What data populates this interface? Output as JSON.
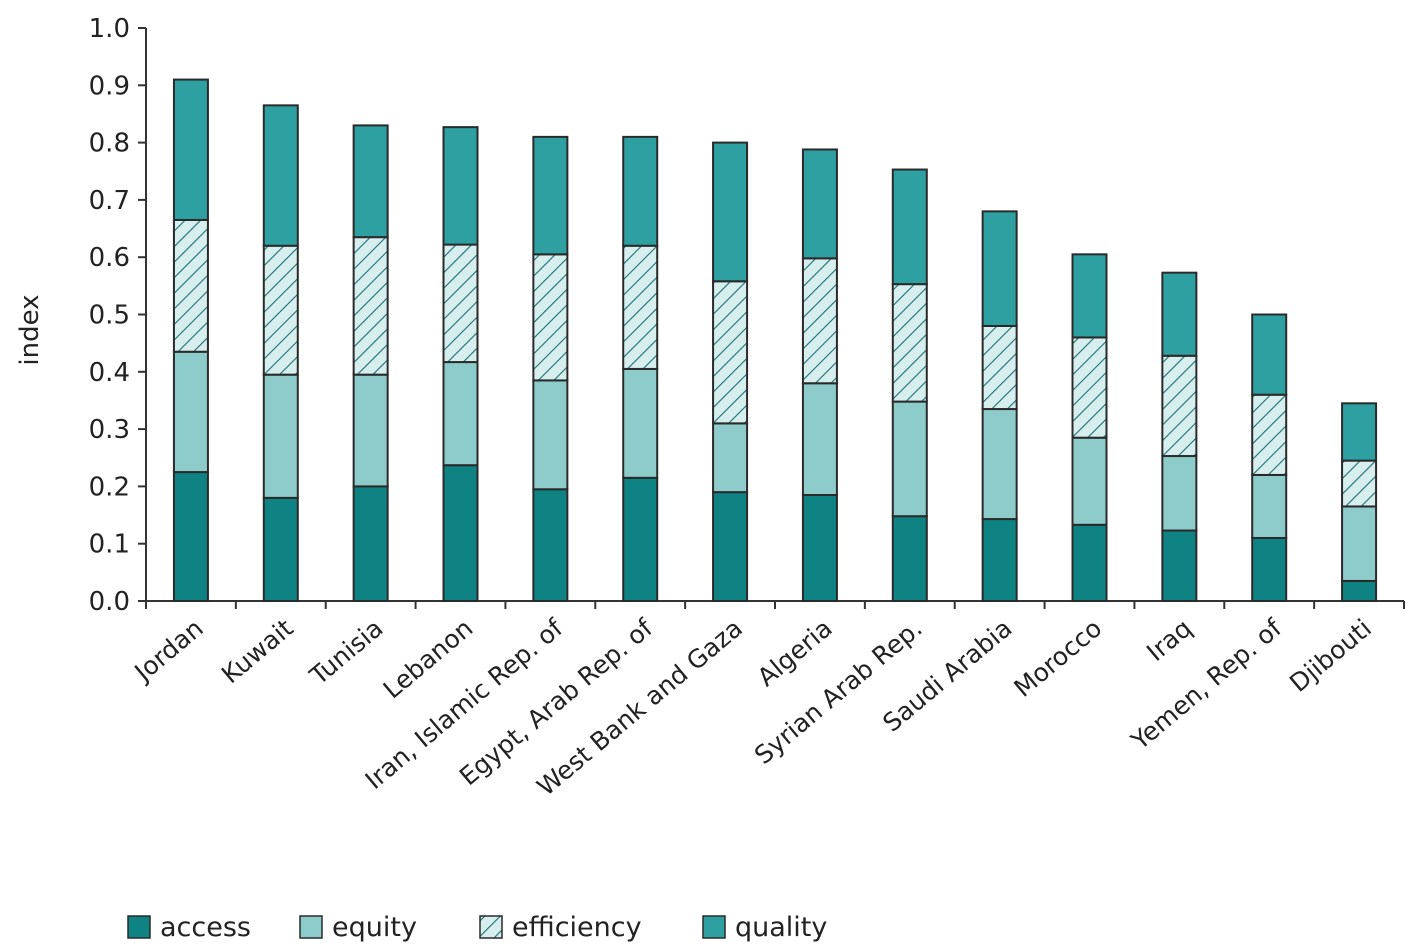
{
  "chart_data": {
    "type": "bar",
    "stacked": true,
    "ylabel": "index",
    "xlabel": "",
    "ylim": [
      0,
      1.0
    ],
    "yticks": [
      "0.0",
      "0.1",
      "0.2",
      "0.3",
      "0.4",
      "0.5",
      "0.6",
      "0.7",
      "0.8",
      "0.9",
      "1.0"
    ],
    "categories": [
      "Jordan",
      "Kuwait",
      "Tunisia",
      "Lebanon",
      "Iran, Islamic Rep. of",
      "Egypt, Arab Rep. of",
      "West Bank and Gaza",
      "Algeria",
      "Syrian Arab Rep.",
      "Saudi Arabia",
      "Morocco",
      "Iraq",
      "Yemen, Rep. of",
      "Djibouti"
    ],
    "series": [
      {
        "name": "access",
        "color": "#0f8383",
        "pattern": "solid",
        "values": [
          0.225,
          0.18,
          0.2,
          0.237,
          0.195,
          0.215,
          0.19,
          0.185,
          0.148,
          0.143,
          0.133,
          0.123,
          0.11,
          0.035
        ]
      },
      {
        "name": "equity",
        "color": "#8ecccb",
        "pattern": "solid",
        "values": [
          0.21,
          0.215,
          0.195,
          0.18,
          0.19,
          0.19,
          0.12,
          0.195,
          0.2,
          0.192,
          0.152,
          0.13,
          0.11,
          0.13
        ]
      },
      {
        "name": "efficiency",
        "color": "#d6eeee",
        "pattern": "hatch",
        "values": [
          0.23,
          0.225,
          0.24,
          0.205,
          0.22,
          0.215,
          0.248,
          0.218,
          0.205,
          0.145,
          0.175,
          0.175,
          0.14,
          0.08
        ]
      },
      {
        "name": "quality",
        "color": "#2ea0a2",
        "pattern": "solid",
        "values": [
          0.245,
          0.245,
          0.195,
          0.205,
          0.205,
          0.19,
          0.242,
          0.19,
          0.2,
          0.2,
          0.145,
          0.145,
          0.14,
          0.1
        ]
      }
    ],
    "legend_position": "bottom-left",
    "grid": false
  }
}
